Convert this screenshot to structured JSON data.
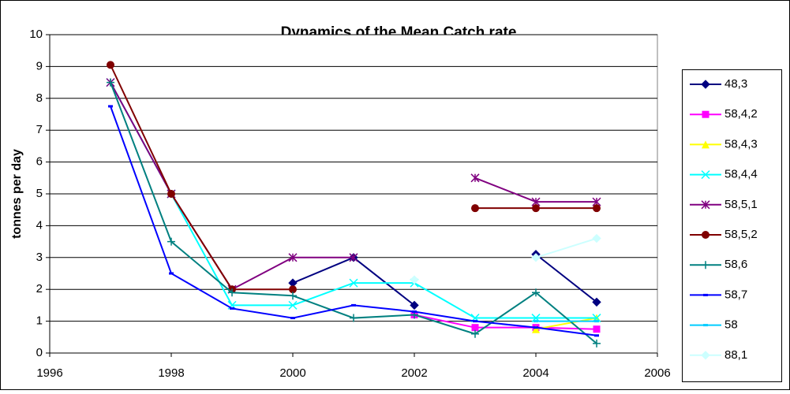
{
  "chart_data": {
    "type": "line",
    "title": "Dynamics of the Mean Catch rate",
    "y_label": "tonnes per day",
    "x": [
      1997,
      1998,
      1999,
      2000,
      2001,
      2002,
      2003,
      2004,
      2005
    ],
    "xlim": [
      1996,
      2006
    ],
    "xticks": [
      1996,
      1998,
      2000,
      2002,
      2004,
      2006
    ],
    "ylim": [
      0,
      10
    ],
    "yticks": [
      0,
      1,
      2,
      3,
      4,
      5,
      6,
      7,
      8,
      9,
      10
    ],
    "grid": true,
    "legend": "right",
    "series": [
      {
        "name": "48,3",
        "color": "#000080",
        "marker": "diamond",
        "values": [
          null,
          null,
          null,
          2.2,
          3.0,
          1.5,
          null,
          3.1,
          1.6
        ]
      },
      {
        "name": "58,4,2",
        "color": "#ff00ff",
        "marker": "square",
        "values": [
          null,
          null,
          null,
          null,
          null,
          1.2,
          0.8,
          0.8,
          0.75
        ]
      },
      {
        "name": "58,4,3",
        "color": "#ffff00",
        "marker": "triangle",
        "values": [
          null,
          null,
          null,
          null,
          null,
          null,
          null,
          0.75,
          1.1
        ]
      },
      {
        "name": "58,4,4",
        "color": "#00ffff",
        "marker": "x",
        "values": [
          8.5,
          5.0,
          1.5,
          1.5,
          2.2,
          2.2,
          1.1,
          1.1,
          1.1
        ]
      },
      {
        "name": "58,5,1",
        "color": "#800080",
        "marker": "star",
        "values": [
          8.5,
          5.0,
          2.0,
          3.0,
          3.0,
          null,
          5.5,
          4.75,
          4.75
        ]
      },
      {
        "name": "58,5,2",
        "color": "#800000",
        "marker": "circle",
        "values": [
          9.05,
          5.0,
          2.0,
          2.0,
          null,
          null,
          4.55,
          4.55,
          4.55
        ]
      },
      {
        "name": "58,6",
        "color": "#008080",
        "marker": "plus",
        "values": [
          8.5,
          3.5,
          1.9,
          1.8,
          1.1,
          1.2,
          0.6,
          1.9,
          0.3
        ]
      },
      {
        "name": "58,7",
        "color": "#0000ff",
        "marker": "dash",
        "values": [
          7.75,
          2.5,
          1.4,
          1.1,
          1.5,
          1.3,
          1.0,
          0.8,
          0.55
        ]
      },
      {
        "name": "58",
        "color": "#00ccff",
        "marker": "dash",
        "values": [
          null,
          null,
          null,
          null,
          null,
          null,
          null,
          1.0,
          1.0
        ]
      },
      {
        "name": "88,1",
        "color": "#ccffff",
        "marker": "diamond",
        "values": [
          null,
          null,
          null,
          null,
          null,
          2.3,
          null,
          3.0,
          3.6
        ]
      }
    ]
  }
}
